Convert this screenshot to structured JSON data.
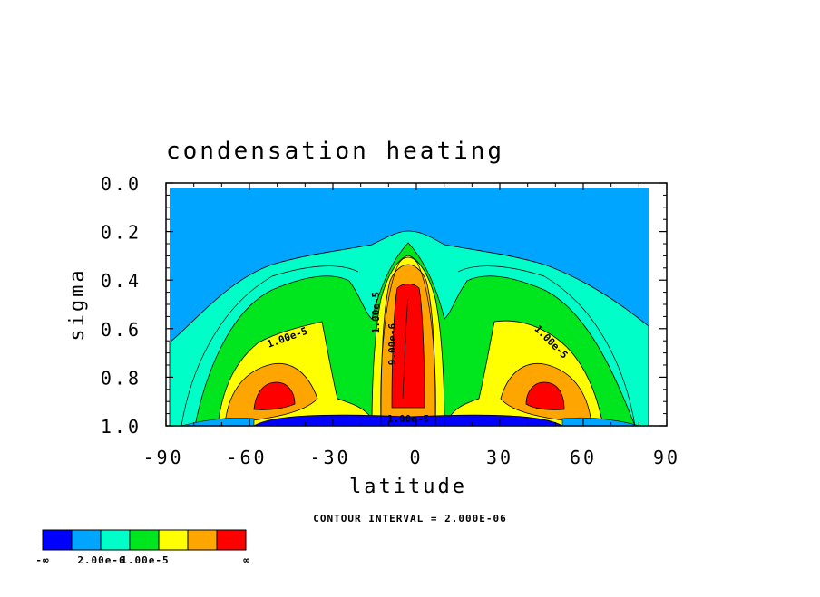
{
  "chart_data": {
    "type": "heatmap",
    "title": "condensation heating",
    "xlabel": "latitude",
    "ylabel": "sigma",
    "xlim": [
      -90,
      90
    ],
    "ylim": [
      1.0,
      0.0
    ],
    "x_ticks": [
      "-90",
      "-60",
      "-30",
      "0",
      "30",
      "60",
      "90"
    ],
    "y_ticks": [
      "0.0",
      "0.2",
      "0.4",
      "0.6",
      "0.8",
      "1.0"
    ],
    "contour_interval_text": "CONTOUR INTERVAL = 2.000E-06",
    "contour_interval": 2e-06,
    "contour_labels": [
      "1.00e-5",
      "1.00e-5",
      "1.00e-5",
      "9.00e-6",
      "1.00e-5"
    ],
    "colorbar": {
      "colors": [
        "#0000ff",
        "#00a5ff",
        "#00ffc8",
        "#00e61e",
        "#ffff00",
        "#ffa500",
        "#ff0000"
      ],
      "labels": [
        "-∞",
        "2.00e-6",
        "1.00e-5",
        "∞"
      ]
    },
    "fill_levels": [
      {
        "color": "#00ffc8",
        "description": "lowest positive band"
      },
      {
        "color": "#00e61e",
        "description": "middle band"
      },
      {
        "color": "#ffff00",
        "description": "near 1.00e-5"
      },
      {
        "color": "#ffa500",
        "description": "high band"
      },
      {
        "color": "#ff0000",
        "description": "maximum band"
      }
    ]
  }
}
